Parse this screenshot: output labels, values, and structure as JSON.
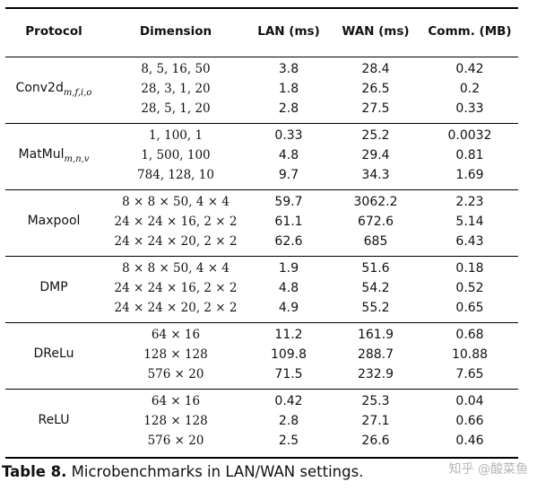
{
  "headers": [
    "Protocol",
    "Dimension",
    "LAN (ms)",
    "WAN (ms)",
    "Comm. (MB)"
  ],
  "groups": [
    {
      "protocol": "Conv2d",
      "sub": "m,f,i,o",
      "rows": [
        [
          "8, 5, 16, 50",
          "3.8",
          "28.4",
          "0.42"
        ],
        [
          "28, 3, 1, 20",
          "1.8",
          "26.5",
          "0.2"
        ],
        [
          "28, 5, 1, 20",
          "2.8",
          "27.5",
          "0.33"
        ]
      ]
    },
    {
      "protocol": "MatMul",
      "sub": "m,n,v",
      "rows": [
        [
          "1, 100, 1",
          "0.33",
          "25.2",
          "0.0032"
        ],
        [
          "1, 500, 100",
          "4.8",
          "29.4",
          "0.81"
        ],
        [
          "784, 128, 10",
          "9.7",
          "34.3",
          "1.69"
        ]
      ]
    },
    {
      "protocol": "Maxpool",
      "sub": "",
      "rows": [
        [
          "8 × 8 × 50, 4 × 4",
          "59.7",
          "3062.2",
          "2.23"
        ],
        [
          "24 × 24 × 16, 2 × 2",
          "61.1",
          "672.6",
          "5.14"
        ],
        [
          "24 × 24 × 20, 2 × 2",
          "62.6",
          "685",
          "6.43"
        ]
      ]
    },
    {
      "protocol": "DMP",
      "sub": "",
      "rows": [
        [
          "8 × 8 × 50, 4 × 4",
          "1.9",
          "51.6",
          "0.18"
        ],
        [
          "24 × 24 × 16, 2 × 2",
          "4.8",
          "54.2",
          "0.52"
        ],
        [
          "24 × 24 × 20, 2 × 2",
          "4.9",
          "55.2",
          "0.65"
        ]
      ]
    },
    {
      "protocol": "DReLu",
      "sub": "",
      "rows": [
        [
          "64 × 16",
          "11.2",
          "161.9",
          "0.68"
        ],
        [
          "128 × 128",
          "109.8",
          "288.7",
          "10.88"
        ],
        [
          "576 × 20",
          "71.5",
          "232.9",
          "7.65"
        ]
      ]
    },
    {
      "protocol": "ReLU",
      "sub": "",
      "rows": [
        [
          "64 × 16",
          "0.42",
          "25.3",
          "0.04"
        ],
        [
          "128 × 128",
          "2.8",
          "27.1",
          "0.66"
        ],
        [
          "576 × 20",
          "2.5",
          "26.6",
          "0.46"
        ]
      ]
    }
  ],
  "caption": {
    "label": "Table 8.",
    "text": " Microbenchmarks in LAN/WAN settings."
  },
  "watermark": "知乎 @酸菜鱼"
}
